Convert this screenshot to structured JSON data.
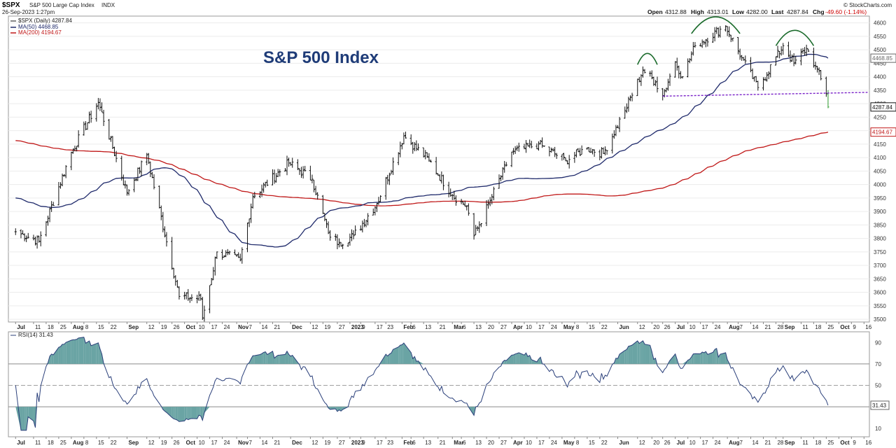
{
  "header": {
    "symbol": "$SPX",
    "name": "S&P 500 Large Cap Index",
    "exchange": "INDX",
    "date": "26-Sep-2023 1:27pm",
    "source": "© StockCharts.com",
    "quote": {
      "open_label": "Open",
      "open": "4312.88",
      "high_label": "High",
      "high": "4313.01",
      "low_label": "Low",
      "low": "4282.00",
      "last_label": "Last",
      "last": "4287.84",
      "chg_label": "Chg",
      "chg": "-49.60 (-1.14%)",
      "chg_color": "#cc0000"
    }
  },
  "legend": {
    "price": "$SPX (Daily) 4287.84",
    "ma50": "MA(50) 4468.85",
    "ma200": "MA(200) 4194.67"
  },
  "annotation": "S&P 500 Index",
  "rsi": {
    "label": "RSI(14) 31.43",
    "last": "31.43"
  },
  "colors": {
    "price": "#111111",
    "ma50": "#1f2a6b",
    "ma200": "#c01818",
    "rsi": "#2a3f7a",
    "rsi_fill": "#6aa4a4",
    "arcs": "#1b6b2c",
    "neckline": "#7a22c8",
    "title": "#1f3c78",
    "down_bar": "#2a9a2a"
  },
  "chart_data": [
    {
      "type": "line",
      "panel": "price",
      "y_axis_ticks": [
        3500,
        3550,
        3600,
        3650,
        3700,
        3750,
        3800,
        3850,
        3900,
        3950,
        4000,
        4050,
        4100,
        4150,
        4200,
        4250,
        4300,
        4350,
        4400,
        4450,
        4500,
        4550,
        4600
      ],
      "ylim": [
        3490,
        4625
      ],
      "x_axis": {
        "months": [
          "Jul",
          "Aug",
          "Sep",
          "Oct",
          "Nov",
          "Dec",
          "2023",
          "Feb",
          "Mar",
          "Apr",
          "May",
          "Jun",
          "Jul",
          "Aug",
          "Sep",
          "Oct"
        ],
        "tick_labels": [
          "Jul",
          "11",
          "18",
          "25",
          "Aug",
          "8",
          "15",
          "22",
          "Sep",
          "12",
          "19",
          "26",
          "Oct",
          "10",
          "17",
          "24",
          "Nov",
          "7",
          "14",
          "21",
          "Dec",
          "12",
          "19",
          "27",
          "2023",
          "9",
          "17",
          "23",
          "Feb",
          "6",
          "13",
          "21",
          "Mar",
          "6",
          "13",
          "20",
          "27",
          "Apr",
          "10",
          "17",
          "24",
          "May",
          "8",
          "15",
          "22",
          "Jun",
          "12",
          "20",
          "26",
          "Jul",
          "10",
          "17",
          "24",
          "Aug",
          "7",
          "14",
          "21",
          "28",
          "Sep",
          "11",
          "18",
          "25",
          "Oct",
          "9",
          "16"
        ]
      },
      "series": [
        {
          "name": "MA(50)",
          "last": 4468.85
        },
        {
          "name": "MA(200)",
          "last": 4194.67
        }
      ],
      "last_price": 4287.84,
      "anchors": [
        [
          "2022-07-01",
          3825
        ],
        [
          "2022-07-14",
          3790
        ],
        [
          "2022-08-01",
          4120
        ],
        [
          "2022-08-16",
          4305
        ],
        [
          "2022-09-01",
          3970
        ],
        [
          "2022-09-12",
          4110
        ],
        [
          "2022-09-30",
          3585
        ],
        [
          "2022-10-12",
          3577
        ],
        [
          "2022-10-13",
          3505
        ],
        [
          "2022-10-21",
          3750
        ],
        [
          "2022-11-03",
          3720
        ],
        [
          "2022-11-10",
          3956
        ],
        [
          "2022-11-30",
          4080
        ],
        [
          "2022-12-13",
          4020
        ],
        [
          "2022-12-22",
          3820
        ],
        [
          "2022-12-28",
          3783
        ],
        [
          "2023-01-05",
          3810
        ],
        [
          "2023-01-18",
          3930
        ],
        [
          "2023-02-02",
          4180
        ],
        [
          "2023-02-16",
          4090
        ],
        [
          "2023-03-01",
          3960
        ],
        [
          "2023-03-09",
          3920
        ],
        [
          "2023-03-13",
          3810
        ],
        [
          "2023-03-22",
          3940
        ],
        [
          "2023-04-03",
          4120
        ],
        [
          "2023-04-18",
          4150
        ],
        [
          "2023-05-03",
          4090
        ],
        [
          "2023-05-15",
          4135
        ],
        [
          "2023-05-24",
          4115
        ],
        [
          "2023-06-05",
          4275
        ],
        [
          "2023-06-15",
          4425
        ],
        [
          "2023-06-22",
          4380
        ],
        [
          "2023-06-26",
          4330
        ],
        [
          "2023-07-03",
          4455
        ],
        [
          "2023-07-07",
          4400
        ],
        [
          "2023-07-14",
          4515
        ],
        [
          "2023-07-31",
          4588
        ],
        [
          "2023-08-09",
          4470
        ],
        [
          "2023-08-18",
          4360
        ],
        [
          "2023-09-01",
          4515
        ],
        [
          "2023-09-07",
          4450
        ],
        [
          "2023-09-14",
          4505
        ],
        [
          "2023-09-19",
          4440
        ],
        [
          "2023-09-25",
          4337
        ],
        [
          "2023-09-26",
          4287.84
        ]
      ]
    },
    {
      "type": "line",
      "panel": "rsi",
      "name": "RSI(14)",
      "y_axis_ticks": [
        10,
        30,
        50,
        70,
        90
      ],
      "ylim": [
        2,
        100
      ],
      "reference_lines": [
        30,
        50,
        70
      ],
      "last": 31.43
    }
  ]
}
